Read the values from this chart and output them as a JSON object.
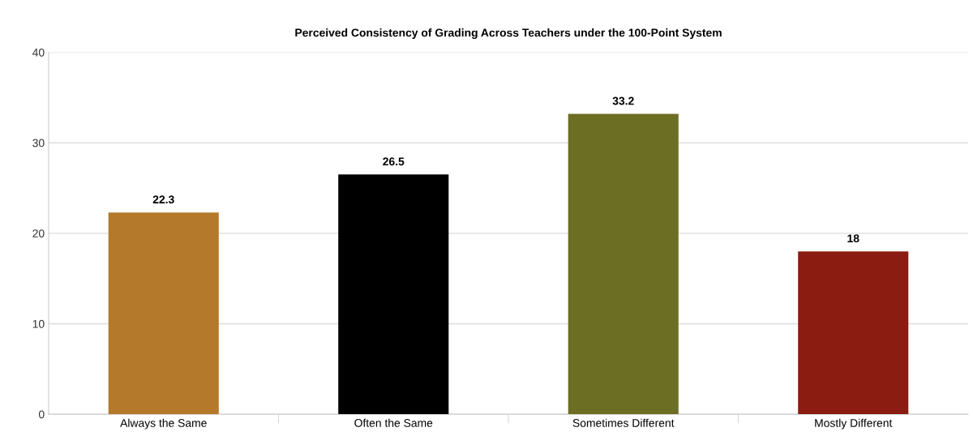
{
  "chart_data": {
    "type": "bar",
    "title": "Perceived Consistency of Grading Across Teachers under the 100-Point System",
    "categories": [
      "Always the Same",
      "Often the Same",
      "Sometimes Different",
      "Mostly Different"
    ],
    "values": [
      22.3,
      26.5,
      33.2,
      18
    ],
    "colors": [
      "#b5792c",
      "#000000",
      "#6b6e23",
      "#8a1c12"
    ],
    "ylim": [
      0,
      40
    ],
    "yticks": [
      0,
      10,
      20,
      30,
      40
    ],
    "grid": "y",
    "data_labels": true
  }
}
